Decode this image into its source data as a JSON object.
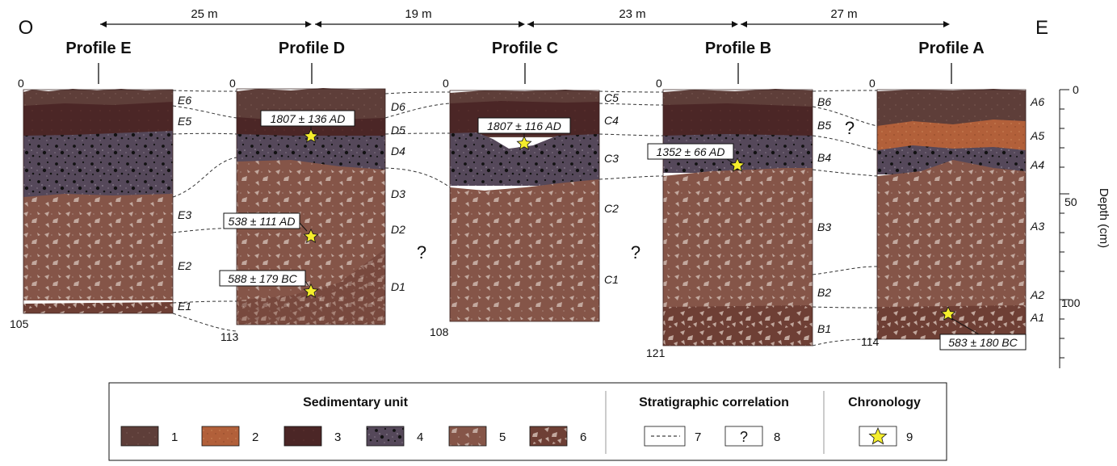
{
  "orientation": {
    "west": "O",
    "east": "E"
  },
  "distances": [
    "25 m",
    "19 m",
    "23 m",
    "27 m"
  ],
  "profiles": [
    {
      "id": "E",
      "title": "Profile E",
      "top_label": "0",
      "bottom_label": "105",
      "units": [
        {
          "label": "E6"
        },
        {
          "label": "E5"
        },
        {
          "label": "E3"
        },
        {
          "label": "E2"
        },
        {
          "label": "E1"
        }
      ],
      "dates": []
    },
    {
      "id": "D",
      "title": "Profile D",
      "top_label": "0",
      "bottom_label": "113",
      "units": [
        {
          "label": "D6"
        },
        {
          "label": "D5"
        },
        {
          "label": "D4"
        },
        {
          "label": "D3"
        },
        {
          "label": "D2"
        },
        {
          "label": "D1"
        }
      ],
      "dates": [
        {
          "label": "1807 ± 136 AD"
        },
        {
          "label": "538 ± 111 AD"
        },
        {
          "label": "588 ± 179 BC"
        }
      ]
    },
    {
      "id": "C",
      "title": "Profile C",
      "top_label": "0",
      "bottom_label": "108",
      "units": [
        {
          "label": "C5"
        },
        {
          "label": "C4"
        },
        {
          "label": "C3"
        },
        {
          "label": "C2"
        },
        {
          "label": "C1"
        }
      ],
      "dates": [
        {
          "label": "1807 ± 116 AD"
        }
      ]
    },
    {
      "id": "B",
      "title": "Profile B",
      "top_label": "0",
      "bottom_label": "121",
      "units": [
        {
          "label": "B6"
        },
        {
          "label": "B5"
        },
        {
          "label": "B4"
        },
        {
          "label": "B3"
        },
        {
          "label": "B2"
        },
        {
          "label": "B1"
        }
      ],
      "dates": [
        {
          "label": "1352 ± 66 AD"
        }
      ]
    },
    {
      "id": "A",
      "title": "Profile A",
      "top_label": "0",
      "bottom_label": "114",
      "units": [
        {
          "label": "A6"
        },
        {
          "label": "A5"
        },
        {
          "label": "A4"
        },
        {
          "label": "A3"
        },
        {
          "label": "A2"
        },
        {
          "label": "A1"
        }
      ],
      "dates": [
        {
          "label": "583 ± 180 BC"
        }
      ]
    }
  ],
  "question_mark": "?",
  "depth_axis": {
    "title": "Depth (cm)",
    "ticks": [
      "0",
      "50",
      "100"
    ]
  },
  "legend": {
    "sedimentary_title": "Sedimentary unit",
    "correlation_title": "Stratigraphic correlation",
    "chronology_title": "Chronology",
    "sedimentary_items": [
      "1",
      "2",
      "3",
      "4",
      "5",
      "6"
    ],
    "correlation_items": [
      "7",
      "8"
    ],
    "chronology_items": [
      "9"
    ],
    "symbol_question": "?"
  },
  "colors": {
    "unit1": "#5e3e39",
    "unit2": "#b2603a",
    "unit3": "#4b2626",
    "unit4": "#55485a",
    "unit5": "#855548",
    "unit6": "#6e3f35",
    "pebble": "#c2a89e",
    "star": "#f5ee2c"
  }
}
